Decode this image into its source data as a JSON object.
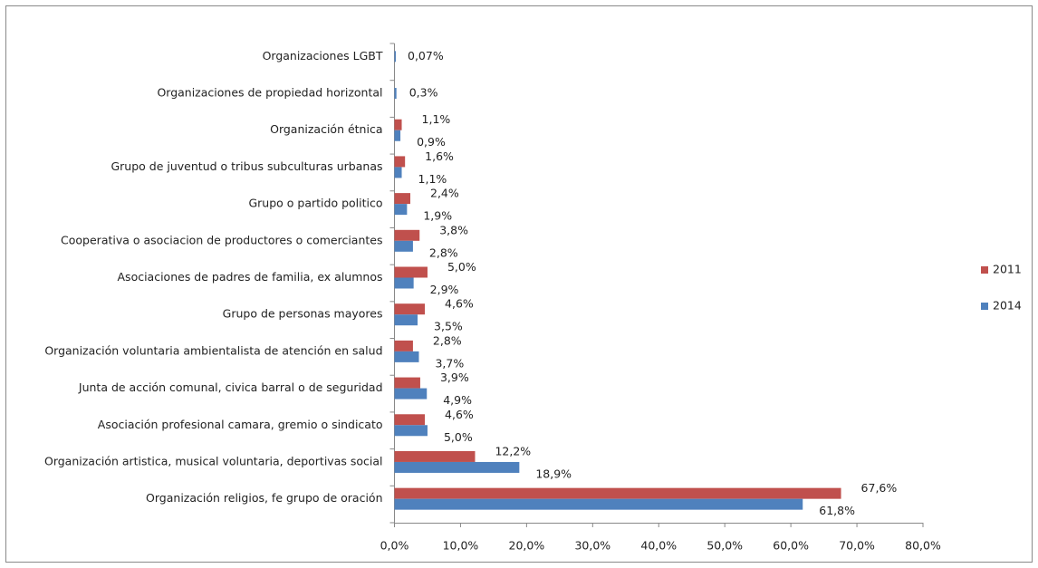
{
  "chart_data": {
    "type": "bar",
    "orientation": "horizontal",
    "categories": [
      "Organizaciones LGBT",
      "Organizaciones de propiedad horizontal",
      "Organización étnica",
      "Grupo de juventud o tribus subculturas urbanas",
      "Grupo o partido politico",
      "Cooperativa o asociacion de productores o comerciantes",
      "Asociaciones de padres de familia, ex alumnos",
      "Grupo de personas mayores",
      "Organización voluntaria ambientalista de atención en salud",
      "Junta de acción comunal, civica barral o de seguridad",
      "Asociación profesional camara, gremio o sindicato",
      "Organización artistica, musical voluntaria, deportivas social",
      "Organización religios, fe grupo de oración"
    ],
    "series": [
      {
        "name": "2011",
        "color": "#c0504d",
        "values": [
          null,
          null,
          1.1,
          1.6,
          2.4,
          3.8,
          5.0,
          4.6,
          2.8,
          3.9,
          4.6,
          12.2,
          67.6
        ],
        "value_labels": [
          null,
          null,
          "1,1%",
          "1,6%",
          "2,4%",
          "3,8%",
          "5,0%",
          "4,6%",
          "2,8%",
          "3,9%",
          "4,6%",
          "12,2%",
          "67,6%"
        ]
      },
      {
        "name": "2014",
        "color": "#4f81bd",
        "values": [
          0.07,
          0.3,
          0.9,
          1.1,
          1.9,
          2.8,
          2.9,
          3.5,
          3.7,
          4.9,
          5.0,
          18.9,
          61.8
        ],
        "value_labels": [
          "0,07%",
          "0,3%",
          "0,9%",
          "1,1%",
          "1,9%",
          "2,8%",
          "2,9%",
          "3,5%",
          "3,7%",
          "4,9%",
          "5,0%",
          "18,9%",
          "61,8%"
        ]
      }
    ],
    "xlim": [
      0,
      80
    ],
    "xticks": [
      {
        "value": 0,
        "label": "0,0%"
      },
      {
        "value": 10,
        "label": "10,0%"
      },
      {
        "value": 20,
        "label": "20,0%"
      },
      {
        "value": 30,
        "label": "30,0%"
      },
      {
        "value": 40,
        "label": "40,0%"
      },
      {
        "value": 50,
        "label": "50,0%"
      },
      {
        "value": 60,
        "label": "60,0%"
      },
      {
        "value": 70,
        "label": "70,0%"
      },
      {
        "value": 80,
        "label": "80,0%"
      }
    ],
    "legend": "right",
    "grid": false
  }
}
